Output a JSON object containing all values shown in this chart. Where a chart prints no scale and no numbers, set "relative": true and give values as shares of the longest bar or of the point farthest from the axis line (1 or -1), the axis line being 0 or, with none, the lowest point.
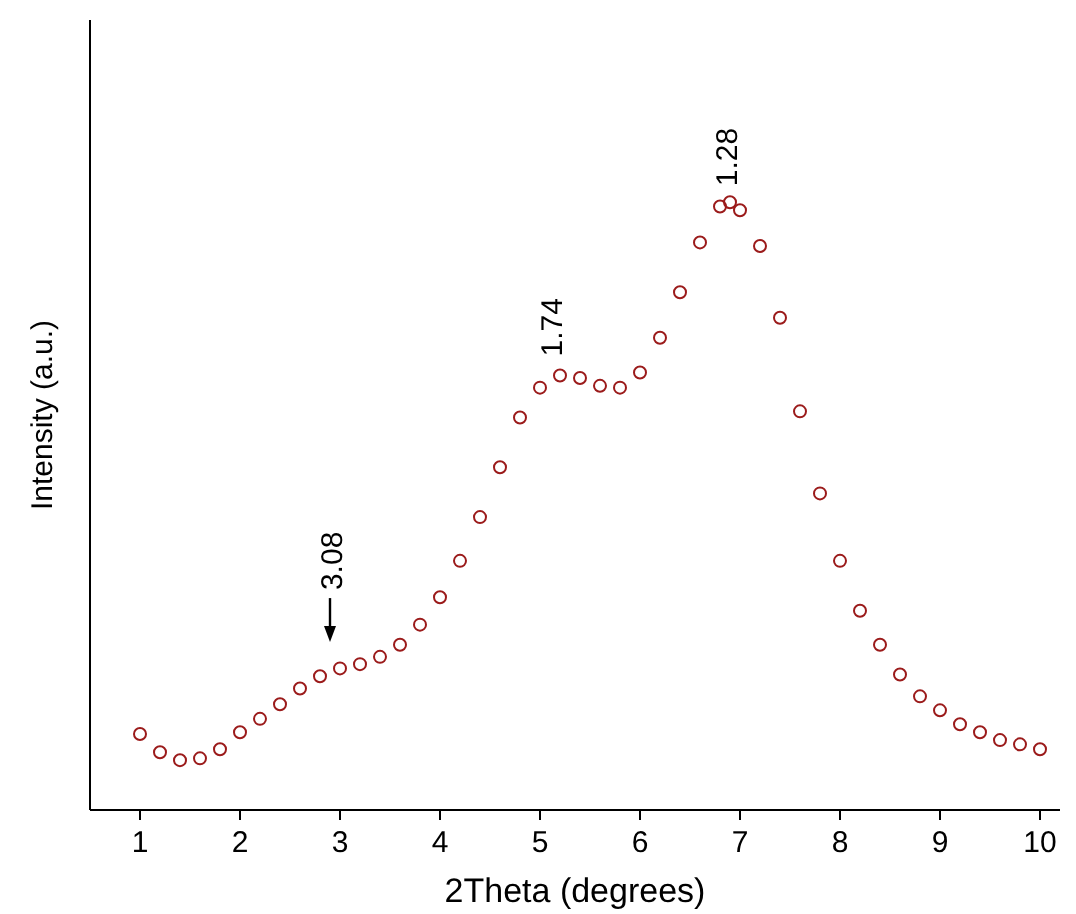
{
  "chart_data": {
    "type": "scatter",
    "xlabel": "2Theta (degrees)",
    "ylabel": "Intensity (a.u.)",
    "relative": true,
    "marker": "circle",
    "xlim": [
      0.5,
      10.2
    ],
    "xticks": [
      1,
      2,
      3,
      4,
      5,
      6,
      7,
      8,
      9,
      10
    ],
    "tick_labels": "x",
    "x": [
      1.0,
      1.2,
      1.4,
      1.6,
      1.8,
      2.0,
      2.2,
      2.4,
      2.6,
      2.8,
      3.0,
      3.2,
      3.4,
      3.6,
      3.8,
      4.0,
      4.2,
      4.4,
      4.6,
      4.8,
      5.0,
      5.2,
      5.4,
      5.6,
      5.8,
      6.0,
      6.2,
      6.4,
      6.6,
      6.8,
      6.9,
      7.0,
      7.2,
      7.4,
      7.6,
      7.8,
      8.0,
      8.2,
      8.4,
      8.6,
      8.8,
      9.0,
      9.2,
      9.4,
      9.6,
      9.8,
      10.0
    ],
    "series": [
      {
        "color": "#9b1b1b",
        "values": [
          0.125,
          0.095,
          0.082,
          0.085,
          0.1,
          0.128,
          0.15,
          0.174,
          0.2,
          0.22,
          0.233,
          0.24,
          0.252,
          0.272,
          0.305,
          0.35,
          0.41,
          0.482,
          0.564,
          0.646,
          0.695,
          0.715,
          0.711,
          0.698,
          0.695,
          0.72,
          0.777,
          0.852,
          0.934,
          0.993,
          1,
          0.987,
          0.928,
          0.81,
          0.656,
          0.521,
          0.41,
          0.328,
          0.272,
          0.223,
          0.187,
          0.164,
          0.141,
          0.128,
          0.115,
          0.108,
          0.1
        ]
      }
    ],
    "annotations": [
      {
        "text": "3.08",
        "x": 2.9,
        "y": 0.25
      },
      {
        "text": "1.74",
        "x": 5.1,
        "y": 0.72
      },
      {
        "text": "1.28",
        "x": 6.85,
        "y": 1
      }
    ]
  }
}
